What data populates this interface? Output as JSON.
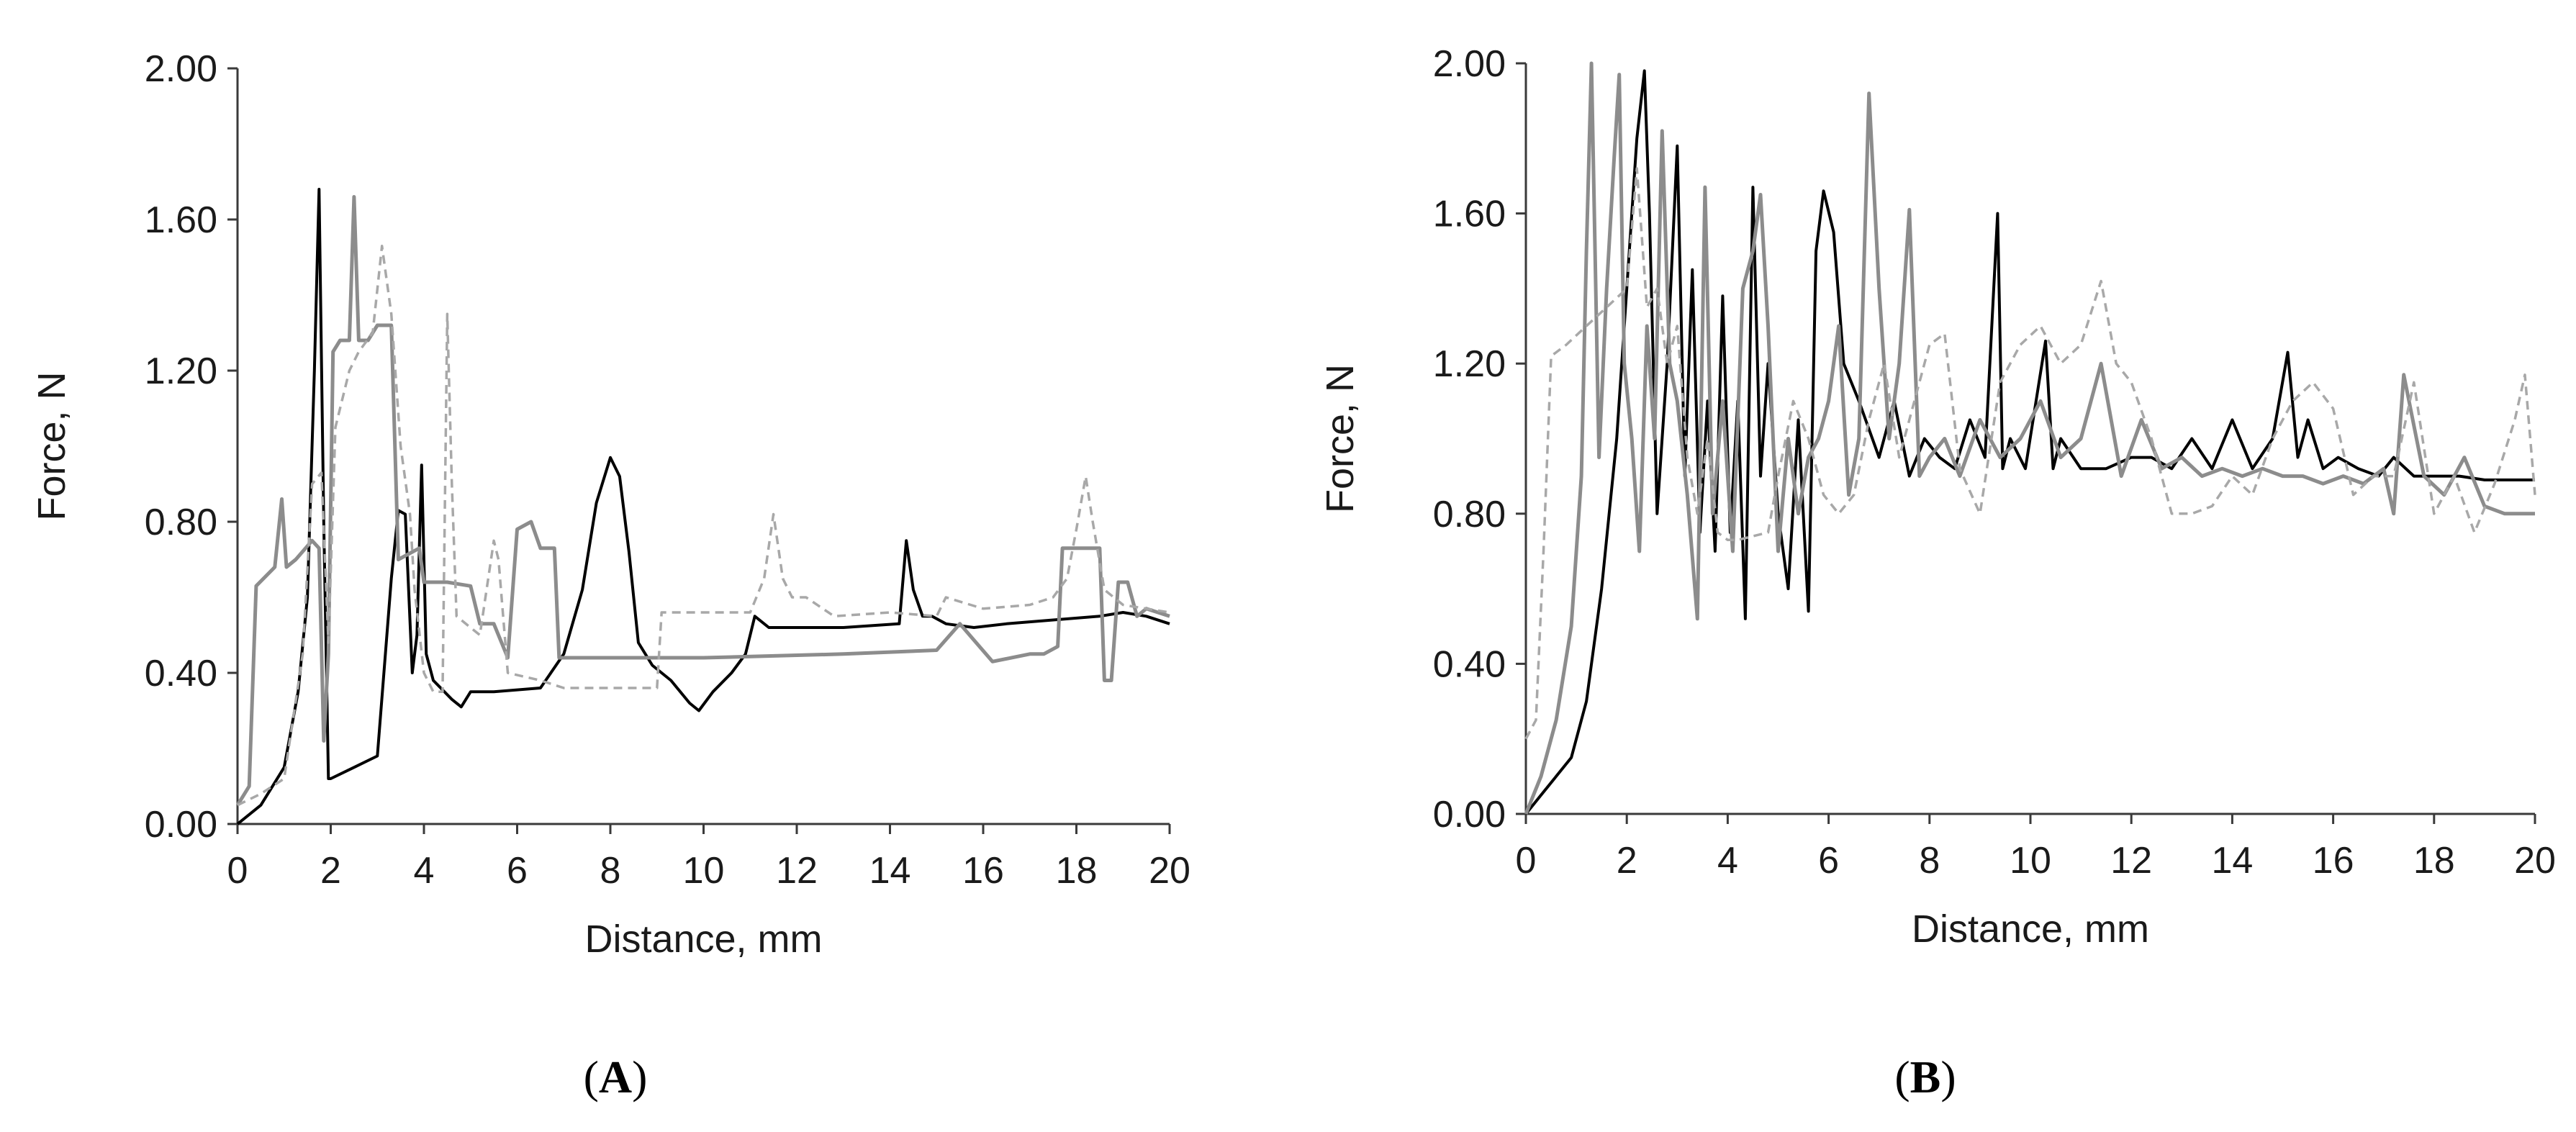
{
  "chart_data": [
    {
      "panel": "A",
      "type": "line",
      "xlabel": "Distance, mm",
      "ylabel": "Force, N",
      "xlim": [
        0,
        20
      ],
      "ylim": [
        0,
        2
      ],
      "x_ticks": [
        "0",
        "2",
        "4",
        "6",
        "8",
        "10",
        "12",
        "14",
        "16",
        "18",
        "20"
      ],
      "y_ticks": [
        "0.00",
        "0.40",
        "0.80",
        "1.20",
        "1.60",
        "2.00"
      ],
      "grid": false,
      "legend": "none",
      "series": [
        {
          "color": "#000000",
          "style": "solid",
          "x": [
            0,
            0.5,
            1.0,
            1.3,
            1.5,
            1.65,
            1.75,
            1.85,
            1.95,
            2.0,
            2.5,
            3.0,
            3.3,
            3.45,
            3.6,
            3.75,
            3.85,
            3.95,
            4.05,
            4.2,
            4.6,
            4.8,
            5.0,
            5.5,
            6.5,
            7.0,
            7.4,
            7.7,
            8.0,
            8.2,
            8.4,
            8.6,
            8.9,
            9.3,
            9.7,
            9.9,
            10.2,
            10.6,
            10.9,
            11.1,
            11.4,
            12.0,
            13.0,
            14.2,
            14.35,
            14.5,
            14.7,
            14.9,
            15.2,
            15.8,
            16.5,
            17.5,
            18.5,
            19.0,
            19.5,
            20.0
          ],
          "y": [
            0,
            0.05,
            0.15,
            0.35,
            0.6,
            1.2,
            1.68,
            0.8,
            0.12,
            0.12,
            0.15,
            0.18,
            0.65,
            0.83,
            0.82,
            0.4,
            0.5,
            0.95,
            0.45,
            0.38,
            0.33,
            0.31,
            0.35,
            0.35,
            0.36,
            0.45,
            0.62,
            0.85,
            0.97,
            0.92,
            0.72,
            0.48,
            0.42,
            0.38,
            0.32,
            0.3,
            0.35,
            0.4,
            0.45,
            0.55,
            0.52,
            0.52,
            0.52,
            0.53,
            0.75,
            0.62,
            0.55,
            0.55,
            0.53,
            0.52,
            0.53,
            0.54,
            0.55,
            0.56,
            0.55,
            0.53
          ]
        },
        {
          "color": "#8c8c8c",
          "style": "solid",
          "x": [
            0,
            0.25,
            0.4,
            0.8,
            0.95,
            1.05,
            1.25,
            1.6,
            1.75,
            1.85,
            1.95,
            2.05,
            2.2,
            2.4,
            2.5,
            2.6,
            2.8,
            3.0,
            3.3,
            3.45,
            3.9,
            4.0,
            4.5,
            5.0,
            5.2,
            5.5,
            5.8,
            6.0,
            6.3,
            6.5,
            6.8,
            6.9,
            7.5,
            10.0,
            13.0,
            15.0,
            15.5,
            16.2,
            17.0,
            17.3,
            17.6,
            17.7,
            18.3,
            18.5,
            18.6,
            18.75,
            18.9,
            19.1,
            19.3,
            19.5,
            20.0
          ],
          "y": [
            0.05,
            0.1,
            0.63,
            0.68,
            0.86,
            0.68,
            0.7,
            0.75,
            0.73,
            0.22,
            0.45,
            1.25,
            1.28,
            1.28,
            1.66,
            1.28,
            1.28,
            1.32,
            1.32,
            0.7,
            0.73,
            0.64,
            0.64,
            0.63,
            0.53,
            0.53,
            0.44,
            0.78,
            0.8,
            0.73,
            0.73,
            0.44,
            0.44,
            0.44,
            0.45,
            0.46,
            0.53,
            0.43,
            0.45,
            0.45,
            0.47,
            0.73,
            0.73,
            0.73,
            0.38,
            0.38,
            0.64,
            0.64,
            0.55,
            0.57,
            0.55
          ]
        },
        {
          "color": "#a8a8a8",
          "style": "dashed",
          "x": [
            0,
            0.5,
            1.0,
            1.4,
            1.6,
            1.8,
            1.95,
            2.1,
            2.4,
            2.6,
            2.9,
            3.1,
            3.3,
            3.5,
            3.7,
            3.8,
            4.0,
            4.2,
            4.4,
            4.5,
            4.6,
            4.7,
            5.2,
            5.5,
            5.6,
            5.8,
            6.5,
            7.0,
            7.5,
            9.0,
            9.1,
            10.0,
            11.0,
            11.3,
            11.5,
            11.7,
            11.9,
            12.2,
            12.8,
            14.0,
            15.0,
            15.2,
            16.0,
            17.0,
            17.5,
            17.8,
            18.0,
            18.2,
            18.35,
            18.6,
            19.0,
            19.5,
            20.0
          ],
          "y": [
            0.05,
            0.08,
            0.12,
            0.45,
            0.9,
            0.93,
            0.48,
            1.05,
            1.2,
            1.25,
            1.3,
            1.53,
            1.35,
            1.0,
            0.82,
            0.62,
            0.4,
            0.35,
            0.35,
            1.35,
            0.9,
            0.55,
            0.5,
            0.75,
            0.7,
            0.4,
            0.38,
            0.36,
            0.36,
            0.36,
            0.56,
            0.56,
            0.56,
            0.65,
            0.82,
            0.65,
            0.6,
            0.6,
            0.55,
            0.56,
            0.55,
            0.6,
            0.57,
            0.58,
            0.6,
            0.65,
            0.78,
            0.92,
            0.8,
            0.62,
            0.58,
            0.57,
            0.56
          ]
        }
      ]
    },
    {
      "panel": "B",
      "type": "line",
      "xlabel": "Distance, mm",
      "ylabel": "Force, N",
      "xlim": [
        0,
        20
      ],
      "ylim": [
        0,
        2
      ],
      "x_ticks": [
        "0",
        "2",
        "4",
        "6",
        "8",
        "10",
        "12",
        "14",
        "16",
        "18",
        "20"
      ],
      "y_ticks": [
        "0.00",
        "0.40",
        "0.80",
        "1.20",
        "1.60",
        "2.00"
      ],
      "grid": false,
      "legend": "none",
      "series": [
        {
          "color": "#000000",
          "style": "solid",
          "x": [
            0,
            0.3,
            0.6,
            0.9,
            1.2,
            1.5,
            1.8,
            2.0,
            2.2,
            2.35,
            2.45,
            2.6,
            2.8,
            3.0,
            3.15,
            3.3,
            3.45,
            3.6,
            3.75,
            3.9,
            4.05,
            4.2,
            4.35,
            4.5,
            4.65,
            4.8,
            5.0,
            5.2,
            5.4,
            5.6,
            5.75,
            5.9,
            6.1,
            6.3,
            6.6,
            7.0,
            7.3,
            7.6,
            7.9,
            8.2,
            8.5,
            8.8,
            9.1,
            9.35,
            9.45,
            9.6,
            9.9,
            10.3,
            10.45,
            10.6,
            11.0,
            11.5,
            12.0,
            12.4,
            12.8,
            13.2,
            13.6,
            14.0,
            14.4,
            14.8,
            15.1,
            15.3,
            15.5,
            15.8,
            16.1,
            16.5,
            16.9,
            17.2,
            17.6,
            18.0,
            18.5,
            19.0,
            20.0
          ],
          "y": [
            0,
            0.05,
            0.1,
            0.15,
            0.3,
            0.6,
            1.0,
            1.4,
            1.8,
            1.98,
            1.6,
            0.8,
            1.2,
            1.78,
            0.9,
            1.45,
            0.75,
            1.1,
            0.7,
            1.38,
            0.75,
            1.1,
            0.52,
            1.67,
            0.9,
            1.2,
            0.8,
            0.6,
            1.05,
            0.54,
            1.5,
            1.66,
            1.55,
            1.2,
            1.1,
            0.95,
            1.1,
            0.9,
            1.0,
            0.95,
            0.92,
            1.05,
            0.95,
            1.6,
            0.92,
            1.0,
            0.92,
            1.26,
            0.92,
            1.0,
            0.92,
            0.92,
            0.95,
            0.95,
            0.92,
            1.0,
            0.92,
            1.05,
            0.92,
            1.0,
            1.23,
            0.95,
            1.05,
            0.92,
            0.95,
            0.92,
            0.9,
            0.95,
            0.9,
            0.9,
            0.9,
            0.89,
            0.89
          ]
        },
        {
          "color": "#8c8c8c",
          "style": "solid",
          "x": [
            0,
            0.3,
            0.6,
            0.9,
            1.1,
            1.2,
            1.3,
            1.45,
            1.6,
            1.75,
            1.85,
            1.95,
            2.1,
            2.25,
            2.4,
            2.55,
            2.7,
            2.85,
            3.0,
            3.2,
            3.4,
            3.55,
            3.7,
            3.9,
            4.1,
            4.3,
            4.5,
            4.65,
            4.8,
            5.0,
            5.2,
            5.4,
            5.6,
            5.8,
            6.0,
            6.2,
            6.4,
            6.6,
            6.8,
            7.0,
            7.2,
            7.4,
            7.6,
            7.8,
            8.0,
            8.3,
            8.6,
            9.0,
            9.4,
            9.8,
            10.2,
            10.6,
            11.0,
            11.4,
            11.8,
            12.2,
            12.6,
            13.0,
            13.4,
            13.8,
            14.2,
            14.6,
            15.0,
            15.4,
            15.8,
            16.2,
            16.6,
            17.0,
            17.2,
            17.4,
            17.8,
            18.2,
            18.6,
            19.0,
            19.4,
            20.0
          ],
          "y": [
            0,
            0.1,
            0.25,
            0.5,
            0.9,
            1.5,
            2.0,
            0.95,
            1.4,
            1.75,
            1.97,
            1.2,
            1.0,
            0.7,
            1.3,
            1.0,
            1.82,
            1.2,
            1.1,
            0.85,
            0.52,
            1.67,
            0.8,
            1.1,
            0.7,
            1.4,
            1.5,
            1.65,
            1.3,
            0.7,
            1.0,
            0.8,
            0.95,
            1.0,
            1.1,
            1.3,
            0.85,
            1.0,
            1.92,
            1.4,
            1.0,
            1.2,
            1.61,
            0.9,
            0.95,
            1.0,
            0.9,
            1.05,
            0.95,
            1.0,
            1.1,
            0.95,
            1.0,
            1.2,
            0.9,
            1.05,
            0.92,
            0.95,
            0.9,
            0.92,
            0.9,
            0.92,
            0.9,
            0.9,
            0.88,
            0.9,
            0.88,
            0.92,
            0.8,
            1.17,
            0.9,
            0.85,
            0.95,
            0.82,
            0.8,
            0.8
          ]
        },
        {
          "color": "#a8a8a8",
          "style": "dashed",
          "x": [
            0,
            0.2,
            0.35,
            0.5,
            0.8,
            1.2,
            1.6,
            2.0,
            2.2,
            2.4,
            2.6,
            2.8,
            3.0,
            3.2,
            3.4,
            3.6,
            3.8,
            4.0,
            4.2,
            4.5,
            4.8,
            5.0,
            5.3,
            5.6,
            5.9,
            6.2,
            6.5,
            6.8,
            7.1,
            7.4,
            7.7,
            8.0,
            8.3,
            8.6,
            9.0,
            9.4,
            9.8,
            10.2,
            10.6,
            11.0,
            11.4,
            11.7,
            12.0,
            12.4,
            12.8,
            13.2,
            13.6,
            14.0,
            14.4,
            14.8,
            15.2,
            15.6,
            16.0,
            16.4,
            16.8,
            17.2,
            17.6,
            18.0,
            18.4,
            18.8,
            19.2,
            19.6,
            19.8,
            20.0
          ],
          "y": [
            0.2,
            0.25,
            0.7,
            1.22,
            1.25,
            1.3,
            1.35,
            1.4,
            1.72,
            1.35,
            1.4,
            1.2,
            1.3,
            0.95,
            0.8,
            1.0,
            0.75,
            0.73,
            0.73,
            0.74,
            0.75,
            0.9,
            1.1,
            1.0,
            0.85,
            0.8,
            0.85,
            1.05,
            1.2,
            0.95,
            1.1,
            1.25,
            1.28,
            0.92,
            0.8,
            1.15,
            1.25,
            1.3,
            1.2,
            1.25,
            1.42,
            1.2,
            1.15,
            1.0,
            0.8,
            0.8,
            0.82,
            0.9,
            0.85,
            1.0,
            1.1,
            1.15,
            1.08,
            0.85,
            0.9,
            0.9,
            1.15,
            0.8,
            0.9,
            0.75,
            0.88,
            1.05,
            1.17,
            0.85
          ]
        }
      ]
    }
  ]
}
